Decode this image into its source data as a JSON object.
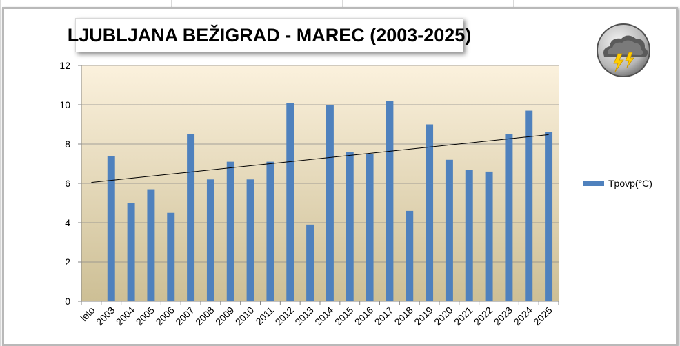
{
  "chart_data": {
    "type": "bar",
    "title": "LJUBLJANA BEŽIGRAD - MAREC (2003-2025)",
    "categories": [
      "leto",
      "2003",
      "2004",
      "2005",
      "2006",
      "2007",
      "2008",
      "2009",
      "2010",
      "2011",
      "2012",
      "2013",
      "2014",
      "2015",
      "2016",
      "2017",
      "2018",
      "2019",
      "2020",
      "2021",
      "2022",
      "2023",
      "2024",
      "2025"
    ],
    "series": [
      {
        "name": "Tpovp(°C)",
        "values": [
          null,
          7.4,
          5.0,
          5.7,
          4.5,
          8.5,
          6.2,
          7.1,
          6.2,
          7.1,
          10.1,
          3.9,
          10.0,
          7.6,
          7.5,
          10.2,
          4.6,
          9.0,
          7.2,
          6.7,
          6.6,
          8.5,
          9.7,
          8.6
        ],
        "color": "#4f81bd"
      }
    ],
    "trendline": {
      "type": "linear",
      "start": 6.05,
      "end": 8.48,
      "color": "#000000"
    },
    "ylim": [
      0,
      12
    ],
    "yticks": [
      "0",
      "2",
      "4",
      "6",
      "8",
      "10",
      "12"
    ],
    "grid": true,
    "legend_position": "right",
    "plot_background": [
      "#fbf1dd",
      "#cdbf95"
    ]
  },
  "logo": {
    "icon": "storm-cloud-icon"
  }
}
